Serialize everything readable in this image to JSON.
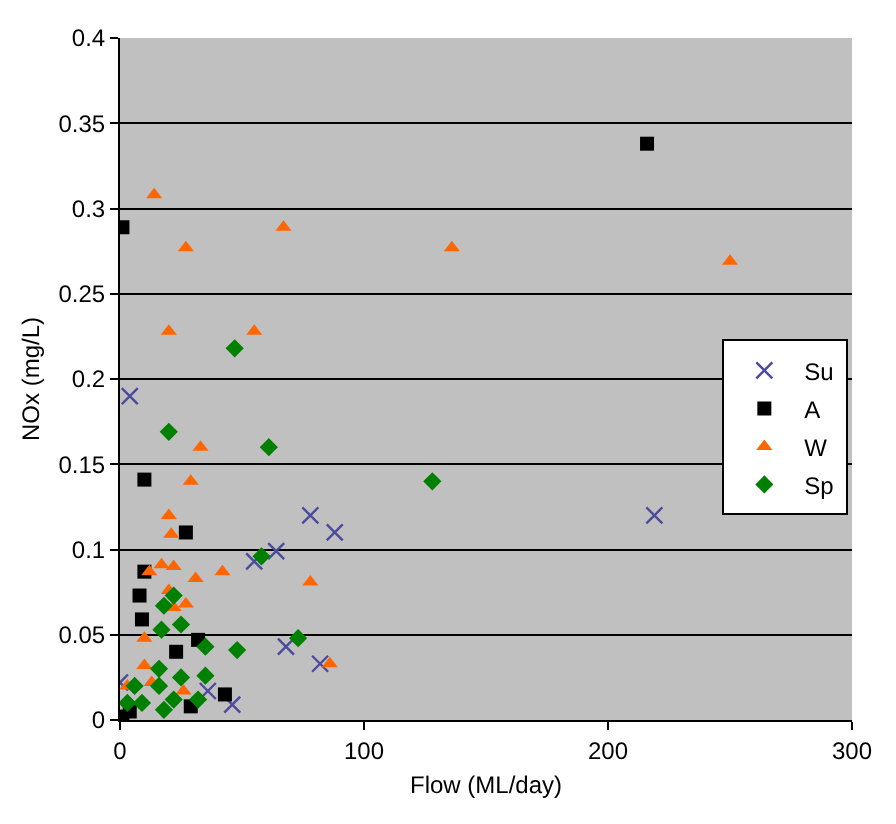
{
  "chart_data": {
    "type": "scatter",
    "xlabel": "Flow (ML/day)",
    "ylabel": "NOx (mg/L)",
    "xlim": [
      0,
      300
    ],
    "xticks": [
      0,
      100,
      200,
      300
    ],
    "ylim": [
      0,
      0.4
    ],
    "yticks": [
      0,
      0.05,
      0.1,
      0.15,
      0.2,
      0.25,
      0.3,
      0.35,
      0.4
    ],
    "grid": "y",
    "legend": "right",
    "series": [
      {
        "name": "Su",
        "color": "#4b4b9b",
        "marker": "cross",
        "x": [
          4,
          219,
          78,
          88,
          64,
          55,
          68,
          82,
          36,
          46,
          0
        ],
        "values": [
          0.19,
          0.12,
          0.12,
          0.11,
          0.099,
          0.093,
          0.043,
          0.033,
          0.017,
          0.009,
          0.022
        ]
      },
      {
        "name": "A",
        "color": "#000000",
        "marker": "square",
        "x": [
          216,
          1,
          10,
          27,
          10,
          8,
          9,
          32,
          23,
          43,
          1,
          4,
          29
        ],
        "values": [
          0.338,
          0.289,
          0.141,
          0.11,
          0.087,
          0.073,
          0.059,
          0.047,
          0.04,
          0.015,
          0.002,
          0.005,
          0.008
        ]
      },
      {
        "name": "W",
        "color": "#ff6600",
        "marker": "triangle",
        "x": [
          14,
          27,
          20,
          55,
          67,
          136,
          250,
          33,
          29,
          20,
          21,
          12,
          17,
          22,
          31,
          42,
          78,
          20,
          22,
          27,
          86,
          10,
          10,
          3,
          26,
          13
        ],
        "values": [
          0.308,
          0.277,
          0.228,
          0.228,
          0.289,
          0.277,
          0.269,
          0.16,
          0.14,
          0.12,
          0.109,
          0.087,
          0.091,
          0.09,
          0.083,
          0.087,
          0.081,
          0.076,
          0.066,
          0.068,
          0.033,
          0.048,
          0.032,
          0.02,
          0.017,
          0.022
        ]
      },
      {
        "name": "Sp",
        "color": "#008000",
        "marker": "diamond",
        "x": [
          47,
          20,
          61,
          128,
          58,
          22,
          18,
          17,
          25,
          73,
          48,
          35,
          35,
          9,
          18,
          22,
          25,
          16,
          6,
          3,
          32,
          16
        ],
        "values": [
          0.218,
          0.169,
          0.16,
          0.14,
          0.096,
          0.073,
          0.067,
          0.053,
          0.056,
          0.048,
          0.041,
          0.043,
          0.026,
          0.01,
          0.006,
          0.012,
          0.025,
          0.02,
          0.02,
          0.01,
          0.012,
          0.03
        ]
      }
    ]
  }
}
